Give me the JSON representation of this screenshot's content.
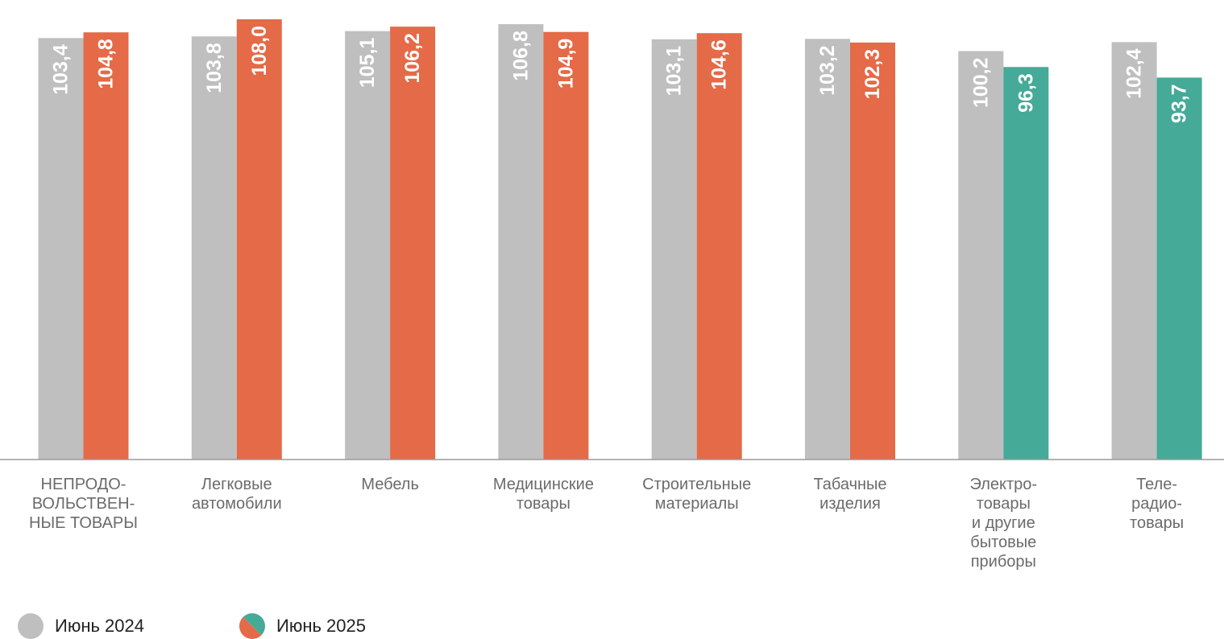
{
  "chart_data": {
    "type": "bar",
    "categories": [
      [
        "НЕПРОДО-",
        "ВОЛЬСТВЕН-",
        "НЫЕ ТОВАРЫ"
      ],
      [
        "Легковые",
        "автомобили"
      ],
      [
        "Мебель"
      ],
      [
        "Медицинские",
        "товары"
      ],
      [
        "Строительные",
        "материалы"
      ],
      [
        "Табачные",
        "изделия"
      ],
      [
        "Электро-",
        "товары",
        "и другие",
        "бытовые",
        "приборы"
      ],
      [
        "Теле-",
        "радио-",
        "товары"
      ]
    ],
    "series": [
      {
        "name": "Июнь 2024",
        "values": [
          103.4,
          103.8,
          105.1,
          106.8,
          103.1,
          103.2,
          100.2,
          102.4
        ],
        "labels": [
          "103,4",
          "103,8",
          "105,1",
          "106,8",
          "103,1",
          "103,2",
          "100,2",
          "102,4"
        ]
      },
      {
        "name": "Июнь 2025",
        "values": [
          104.8,
          108.0,
          106.2,
          104.9,
          104.6,
          102.3,
          96.3,
          93.7
        ],
        "labels": [
          "104,8",
          "108,0",
          "106,2",
          "104,9",
          "104,6",
          "102,3",
          "96,3",
          "93,7"
        ]
      }
    ],
    "ylim": [
      0,
      110
    ],
    "grid": false,
    "legend_position": "bottom-left",
    "colors": {
      "series_2024": "#bfbfbf",
      "series_2025_above_100": "#e46a48",
      "series_2025_below_100": "#45aa98",
      "axis": "#9a9a9a"
    }
  }
}
